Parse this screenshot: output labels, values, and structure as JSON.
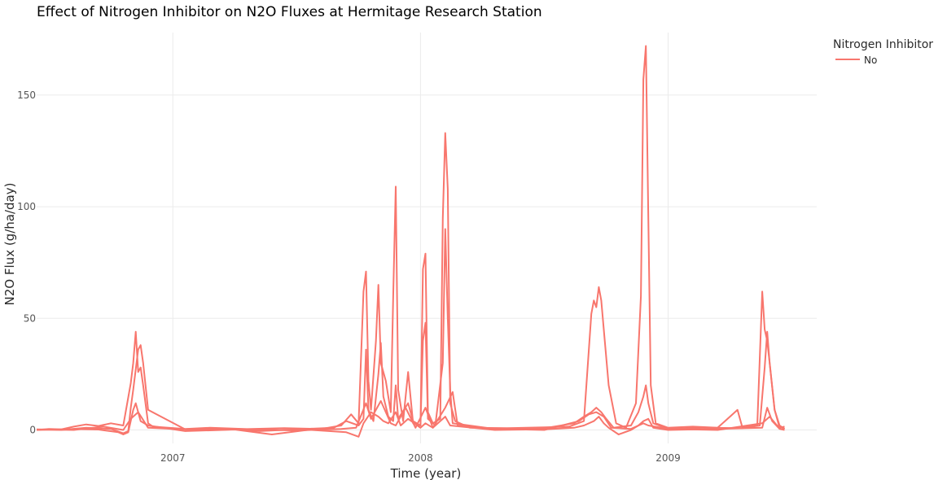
{
  "chart_data": {
    "type": "line",
    "title": "Effect of Nitrogen Inhibitor on N2O Fluxes at Hermitage Research Station",
    "xlabel": "Time (year)",
    "ylabel": "N2O Flux (g/ha/day)",
    "xlim": [
      2006.45,
      2009.6
    ],
    "ylim": [
      -6,
      178
    ],
    "x_ticks": [
      {
        "value": 2007,
        "label": "2007"
      },
      {
        "value": 2008,
        "label": "2008"
      },
      {
        "value": 2009,
        "label": "2009"
      }
    ],
    "y_ticks": [
      {
        "value": 0,
        "label": "0"
      },
      {
        "value": 50,
        "label": "50"
      },
      {
        "value": 100,
        "label": "100"
      },
      {
        "value": 150,
        "label": "150"
      }
    ],
    "grid": true,
    "legend": {
      "title": "Nitrogen Inhibitor",
      "position": "top-right"
    },
    "series": [
      {
        "name": "No",
        "color": "#F8766D",
        "points": [
          [
            2006.45,
            0
          ],
          [
            2006.5,
            0.5
          ],
          [
            2006.55,
            0.3
          ],
          [
            2006.6,
            1.5
          ],
          [
            2006.65,
            2.5
          ],
          [
            2006.7,
            1.8
          ],
          [
            2006.75,
            3
          ],
          [
            2006.8,
            2
          ],
          [
            2006.83,
            21
          ],
          [
            2006.84,
            30
          ],
          [
            2006.85,
            44
          ],
          [
            2006.86,
            26
          ],
          [
            2006.87,
            28
          ],
          [
            2006.88,
            20
          ],
          [
            2006.9,
            3
          ],
          [
            2006.92,
            1.5
          ],
          [
            2007.05,
            0.5
          ],
          [
            2007.15,
            1
          ],
          [
            2007.3,
            0.4
          ],
          [
            2007.45,
            0.8
          ],
          [
            2007.6,
            0.5
          ],
          [
            2007.68,
            2
          ],
          [
            2007.72,
            7
          ],
          [
            2007.75,
            3
          ],
          [
            2007.77,
            62
          ],
          [
            2007.78,
            71
          ],
          [
            2007.79,
            22
          ],
          [
            2007.8,
            9
          ],
          [
            2007.82,
            40
          ],
          [
            2007.83,
            65
          ],
          [
            2007.84,
            30
          ],
          [
            2007.86,
            22
          ],
          [
            2007.88,
            8
          ],
          [
            2007.89,
            60
          ],
          [
            2007.9,
            109
          ],
          [
            2007.91,
            18
          ],
          [
            2007.93,
            4
          ],
          [
            2007.95,
            26
          ],
          [
            2007.97,
            3
          ],
          [
            2008.0,
            2
          ],
          [
            2008.01,
            72
          ],
          [
            2008.02,
            79
          ],
          [
            2008.03,
            8
          ],
          [
            2008.05,
            3
          ],
          [
            2008.08,
            5
          ],
          [
            2008.09,
            95
          ],
          [
            2008.1,
            133
          ],
          [
            2008.11,
            108
          ],
          [
            2008.12,
            12
          ],
          [
            2008.14,
            4
          ],
          [
            2008.2,
            1
          ],
          [
            2008.35,
            0.8
          ],
          [
            2008.5,
            1.2
          ],
          [
            2008.6,
            1.5
          ],
          [
            2008.66,
            4
          ],
          [
            2008.69,
            52
          ],
          [
            2008.7,
            58
          ],
          [
            2008.71,
            55
          ],
          [
            2008.72,
            64
          ],
          [
            2008.73,
            58
          ],
          [
            2008.74,
            45
          ],
          [
            2008.76,
            20
          ],
          [
            2008.79,
            3
          ],
          [
            2008.83,
            1
          ],
          [
            2008.87,
            12
          ],
          [
            2008.89,
            60
          ],
          [
            2008.9,
            157
          ],
          [
            2008.91,
            172
          ],
          [
            2008.92,
            95
          ],
          [
            2008.93,
            20
          ],
          [
            2008.95,
            3
          ],
          [
            2009.0,
            1
          ],
          [
            2009.1,
            1.5
          ],
          [
            2009.2,
            1
          ],
          [
            2009.28,
            9
          ],
          [
            2009.3,
            1
          ],
          [
            2009.36,
            2
          ],
          [
            2009.38,
            62
          ],
          [
            2009.39,
            45
          ],
          [
            2009.4,
            40
          ],
          [
            2009.41,
            30
          ],
          [
            2009.43,
            9
          ],
          [
            2009.45,
            1
          ],
          [
            2009.47,
            1.5
          ]
        ]
      },
      {
        "name": "No",
        "color": "#F8766D",
        "points": [
          [
            2006.45,
            0.2
          ],
          [
            2006.55,
            0
          ],
          [
            2006.65,
            1
          ],
          [
            2006.75,
            0.5
          ],
          [
            2006.8,
            -1.5
          ],
          [
            2006.82,
            -0.5
          ],
          [
            2006.83,
            10
          ],
          [
            2006.84,
            18
          ],
          [
            2006.86,
            36
          ],
          [
            2006.87,
            38
          ],
          [
            2006.88,
            30
          ],
          [
            2006.9,
            9
          ],
          [
            2007.05,
            0.3
          ],
          [
            2007.2,
            0.6
          ],
          [
            2007.35,
            -0.5
          ],
          [
            2007.5,
            0.3
          ],
          [
            2007.65,
            1
          ],
          [
            2007.7,
            4
          ],
          [
            2007.75,
            2
          ],
          [
            2007.77,
            5
          ],
          [
            2007.78,
            36
          ],
          [
            2007.79,
            9
          ],
          [
            2007.81,
            4
          ],
          [
            2007.83,
            25
          ],
          [
            2007.84,
            39
          ],
          [
            2007.85,
            15
          ],
          [
            2007.87,
            6
          ],
          [
            2007.89,
            4
          ],
          [
            2007.9,
            20
          ],
          [
            2007.91,
            5
          ],
          [
            2007.95,
            12
          ],
          [
            2007.97,
            4
          ],
          [
            2008.0,
            2
          ],
          [
            2008.01,
            40
          ],
          [
            2008.02,
            48
          ],
          [
            2008.03,
            5
          ],
          [
            2008.06,
            2
          ],
          [
            2008.09,
            30
          ],
          [
            2008.1,
            90
          ],
          [
            2008.11,
            50
          ],
          [
            2008.12,
            18
          ],
          [
            2008.13,
            3
          ],
          [
            2008.3,
            0.5
          ],
          [
            2008.5,
            0.8
          ],
          [
            2008.62,
            3
          ],
          [
            2008.66,
            6
          ],
          [
            2008.69,
            8
          ],
          [
            2008.71,
            10
          ],
          [
            2008.73,
            8
          ],
          [
            2008.75,
            5
          ],
          [
            2008.78,
            1
          ],
          [
            2008.85,
            2
          ],
          [
            2008.88,
            8
          ],
          [
            2008.9,
            15
          ],
          [
            2008.91,
            20
          ],
          [
            2008.92,
            12
          ],
          [
            2008.94,
            3
          ],
          [
            2009.0,
            0.5
          ],
          [
            2009.15,
            1
          ],
          [
            2009.3,
            0.8
          ],
          [
            2009.37,
            2
          ],
          [
            2009.39,
            28
          ],
          [
            2009.4,
            44
          ],
          [
            2009.41,
            30
          ],
          [
            2009.43,
            9
          ],
          [
            2009.45,
            2
          ],
          [
            2009.47,
            0.5
          ]
        ]
      },
      {
        "name": "No",
        "color": "#F8766D",
        "points": [
          [
            2006.45,
            0
          ],
          [
            2006.6,
            0.4
          ],
          [
            2006.7,
            0.2
          ],
          [
            2006.78,
            -1
          ],
          [
            2006.8,
            -2
          ],
          [
            2006.82,
            -1
          ],
          [
            2006.84,
            9
          ],
          [
            2006.85,
            12
          ],
          [
            2006.87,
            4
          ],
          [
            2006.9,
            2
          ],
          [
            2007.05,
            -0.5
          ],
          [
            2007.25,
            0.2
          ],
          [
            2007.4,
            -2
          ],
          [
            2007.55,
            0.1
          ],
          [
            2007.7,
            -1
          ],
          [
            2007.75,
            -3
          ],
          [
            2007.77,
            3
          ],
          [
            2007.8,
            8
          ],
          [
            2007.83,
            6
          ],
          [
            2007.85,
            4
          ],
          [
            2007.87,
            3
          ],
          [
            2007.9,
            8
          ],
          [
            2007.92,
            2
          ],
          [
            2007.95,
            5
          ],
          [
            2008.0,
            1
          ],
          [
            2008.02,
            3
          ],
          [
            2008.05,
            1
          ],
          [
            2008.1,
            6
          ],
          [
            2008.12,
            2
          ],
          [
            2008.3,
            0
          ],
          [
            2008.5,
            0.3
          ],
          [
            2008.62,
            1
          ],
          [
            2008.66,
            2
          ],
          [
            2008.7,
            4
          ],
          [
            2008.72,
            6
          ],
          [
            2008.74,
            3
          ],
          [
            2008.76,
            1
          ],
          [
            2008.8,
            -2
          ],
          [
            2008.85,
            0
          ],
          [
            2008.88,
            2
          ],
          [
            2008.9,
            4
          ],
          [
            2008.92,
            5
          ],
          [
            2008.94,
            1
          ],
          [
            2009.0,
            0
          ],
          [
            2009.2,
            0.5
          ],
          [
            2009.38,
            1
          ],
          [
            2009.4,
            10
          ],
          [
            2009.42,
            4
          ],
          [
            2009.45,
            0.5
          ],
          [
            2009.47,
            0
          ]
        ]
      },
      {
        "name": "No",
        "color": "#F8766D",
        "points": [
          [
            2006.45,
            0.3
          ],
          [
            2006.6,
            0
          ],
          [
            2006.72,
            1.5
          ],
          [
            2006.8,
            0
          ],
          [
            2006.83,
            5
          ],
          [
            2006.86,
            8
          ],
          [
            2006.9,
            1
          ],
          [
            2007.1,
            0
          ],
          [
            2007.3,
            0.3
          ],
          [
            2007.5,
            -0.2
          ],
          [
            2007.68,
            0.5
          ],
          [
            2007.74,
            1
          ],
          [
            2007.78,
            12
          ],
          [
            2007.8,
            5
          ],
          [
            2007.84,
            13
          ],
          [
            2007.88,
            3
          ],
          [
            2007.9,
            2
          ],
          [
            2007.94,
            10
          ],
          [
            2007.98,
            1
          ],
          [
            2008.02,
            10
          ],
          [
            2008.05,
            1
          ],
          [
            2008.1,
            10
          ],
          [
            2008.13,
            17
          ],
          [
            2008.15,
            2
          ],
          [
            2008.3,
            0.5
          ],
          [
            2008.5,
            0
          ],
          [
            2008.64,
            4
          ],
          [
            2008.68,
            7
          ],
          [
            2008.71,
            8
          ],
          [
            2008.74,
            6
          ],
          [
            2008.77,
            1
          ],
          [
            2008.85,
            0.5
          ],
          [
            2008.9,
            3
          ],
          [
            2008.92,
            2
          ],
          [
            2009.0,
            0.5
          ],
          [
            2009.2,
            0
          ],
          [
            2009.38,
            3
          ],
          [
            2009.41,
            6
          ],
          [
            2009.44,
            2
          ],
          [
            2009.47,
            0.5
          ]
        ]
      }
    ]
  }
}
